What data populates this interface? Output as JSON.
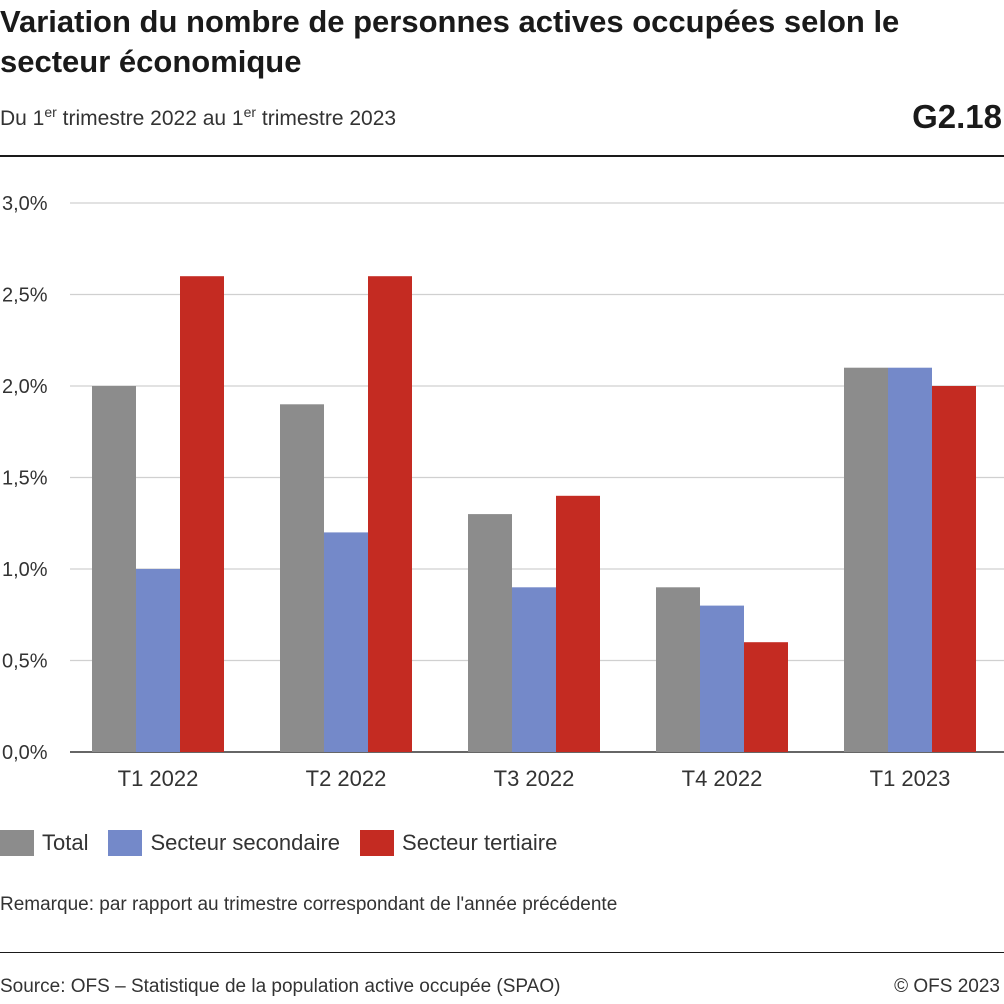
{
  "header": {
    "title": "Variation du nombre de personnes actives occupées selon le secteur économique",
    "subtitle": {
      "part1": "Du 1",
      "sup1": "er",
      "part2": " trimestre 2022 au 1",
      "sup2": "er",
      "part3": " trimestre 2023"
    },
    "figure_id": "G2.18"
  },
  "chart_data": {
    "type": "bar",
    "categories": [
      "T1 2022",
      "T2 2022",
      "T3 2022",
      "T4 2022",
      "T1 2023"
    ],
    "series": [
      {
        "name": "Total",
        "color": "#8c8c8c",
        "values": [
          2.0,
          1.9,
          1.3,
          0.9,
          2.1
        ]
      },
      {
        "name": "Secteur secondaire",
        "color": "#7489c9",
        "values": [
          1.0,
          1.2,
          0.9,
          0.8,
          2.1
        ]
      },
      {
        "name": "Secteur tertiaire",
        "color": "#c42b22",
        "values": [
          2.6,
          2.6,
          1.4,
          0.6,
          2.0
        ]
      }
    ],
    "ylim": [
      0,
      3.0
    ],
    "yticks": [
      0,
      0.5,
      1.0,
      1.5,
      2.0,
      2.5,
      3.0
    ],
    "ytick_labels": [
      "0,0%",
      "0,5%",
      "1,0%",
      "1,5%",
      "2,0%",
      "2,5%",
      "3,0%"
    ],
    "grid": true,
    "legend_position": "bottom-left"
  },
  "remark": "Remarque: par rapport au trimestre correspondant de l'année précédente",
  "footer": {
    "source": "Source: OFS – Statistique de la population active occupée (SPAO)",
    "copyright": "© OFS 2023"
  }
}
